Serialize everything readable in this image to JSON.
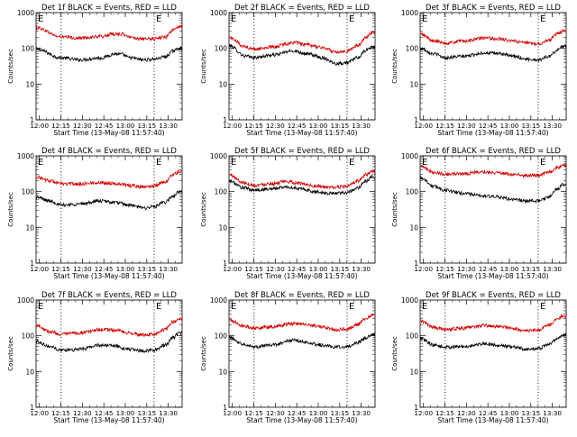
{
  "chart_data": [
    {
      "type": "line",
      "title": "Det 1f BLACK = Events, RED = LLD",
      "xlabel": "Start Time (13-May-08 11:57:40)",
      "ylabel": "Counts/sec",
      "x_ticks": [
        "12:00",
        "12:15",
        "12:30",
        "12:45",
        "13:00",
        "13:15",
        "13:30"
      ],
      "y_ticks": [
        "1",
        "10",
        "100",
        "1000"
      ],
      "x_range_minutes": [
        0,
        102
      ],
      "ylim": [
        1,
        1000
      ],
      "y_scale": "log",
      "vlines_minutes": [
        17.5,
        82.5
      ],
      "markers": [
        {
          "label": "E",
          "x_minutes": 0
        },
        {
          "label": "E",
          "x_minutes": 82.5
        }
      ],
      "x": [
        0,
        17.5,
        30,
        45,
        55,
        60,
        65,
        75,
        82.5,
        90,
        96,
        100
      ],
      "series": [
        {
          "name": "BLACK = Events",
          "color": "#000000",
          "values": [
            95,
            55,
            48,
            54,
            70,
            68,
            55,
            48,
            50,
            58,
            85,
            100
          ]
        },
        {
          "name": "RED = LLD",
          "color": "#d40000",
          "values": [
            380,
            210,
            195,
            215,
            255,
            250,
            210,
            180,
            185,
            210,
            330,
            400
          ]
        }
      ]
    },
    {
      "type": "line",
      "title": "Det 2f BLACK = Events, RED = LLD",
      "xlabel": "Start Time (13-May-08 11:57:40)",
      "ylabel": "Counts/sec",
      "x_ticks": [
        "12:00",
        "12:15",
        "12:30",
        "12:45",
        "13:00",
        "13:15",
        "13:30"
      ],
      "y_ticks": [
        "1",
        "10",
        "100",
        "1000"
      ],
      "x_range_minutes": [
        0,
        102
      ],
      "ylim": [
        1,
        1000
      ],
      "y_scale": "log",
      "vlines_minutes": [
        17.5,
        82.5
      ],
      "markers": [
        {
          "label": "E",
          "x_minutes": 0
        },
        {
          "label": "E",
          "x_minutes": 82.5
        }
      ],
      "x": [
        0,
        12,
        17.5,
        30,
        45,
        55,
        65,
        75,
        82.5,
        90,
        96,
        100
      ],
      "series": [
        {
          "name": "BLACK = Events",
          "color": "#000000",
          "values": [
            120,
            60,
            55,
            65,
            85,
            70,
            55,
            38,
            40,
            55,
            90,
            110
          ]
        },
        {
          "name": "RED = LLD",
          "color": "#d40000",
          "values": [
            200,
            110,
            95,
            110,
            145,
            125,
            105,
            80,
            85,
            120,
            210,
            280
          ]
        }
      ]
    },
    {
      "type": "line",
      "title": "Det 3f BLACK = Events, RED = LLD",
      "xlabel": "Start Time (13-May-08 11:57:40)",
      "ylabel": "Counts/sec",
      "x_ticks": [
        "12:00",
        "12:15",
        "12:30",
        "12:45",
        "13:00",
        "13:15",
        "13:30"
      ],
      "y_ticks": [
        "1",
        "10",
        "100",
        "1000"
      ],
      "x_range_minutes": [
        0,
        102
      ],
      "ylim": [
        1,
        1000
      ],
      "y_scale": "log",
      "vlines_minutes": [
        17.5,
        82.5
      ],
      "markers": [
        {
          "label": "E",
          "x_minutes": 0
        },
        {
          "label": "E",
          "x_minutes": 82.5
        }
      ],
      "x": [
        0,
        10,
        17.5,
        30,
        45,
        55,
        65,
        75,
        82.5,
        90,
        96,
        100
      ],
      "series": [
        {
          "name": "BLACK = Events",
          "color": "#000000",
          "values": [
            100,
            70,
            55,
            60,
            75,
            72,
            60,
            50,
            48,
            60,
            90,
            120
          ]
        },
        {
          "name": "RED = LLD",
          "color": "#d40000",
          "values": [
            250,
            160,
            140,
            160,
            195,
            185,
            160,
            140,
            135,
            170,
            260,
            310
          ]
        }
      ]
    },
    {
      "type": "line",
      "title": "Det 4f BLACK = Events, RED = LLD",
      "xlabel": "Start Time (13-May-08 11:57:40)",
      "ylabel": "Counts/sec",
      "x_ticks": [
        "12:00",
        "12:15",
        "12:30",
        "12:45",
        "13:00",
        "13:15",
        "13:30"
      ],
      "y_ticks": [
        "1",
        "10",
        "100",
        "1000"
      ],
      "x_range_minutes": [
        0,
        102
      ],
      "ylim": [
        1,
        1000
      ],
      "y_scale": "log",
      "vlines_minutes": [
        17.5,
        82.5
      ],
      "markers": [
        {
          "label": "E",
          "x_minutes": 0
        },
        {
          "label": "E",
          "x_minutes": 82.5
        }
      ],
      "x": [
        0,
        10,
        17.5,
        30,
        45,
        55,
        65,
        75,
        82.5,
        90,
        96,
        100
      ],
      "series": [
        {
          "name": "BLACK = Events",
          "color": "#000000",
          "values": [
            70,
            55,
            42,
            45,
            55,
            50,
            42,
            35,
            38,
            50,
            75,
            100
          ]
        },
        {
          "name": "RED = LLD",
          "color": "#d40000",
          "values": [
            260,
            200,
            165,
            165,
            180,
            170,
            150,
            135,
            145,
            190,
            300,
            370
          ]
        }
      ]
    },
    {
      "type": "line",
      "title": "Det 5f BLACK = Events, RED = LLD",
      "xlabel": "Start Time (13-May-08 11:57:40)",
      "ylabel": "Counts/sec",
      "x_ticks": [
        "12:00",
        "12:15",
        "12:30",
        "12:45",
        "13:00",
        "13:15",
        "13:30"
      ],
      "y_ticks": [
        "1",
        "10",
        "100",
        "1000"
      ],
      "x_range_minutes": [
        0,
        102
      ],
      "ylim": [
        1,
        1000
      ],
      "y_scale": "log",
      "vlines_minutes": [
        17.5,
        82.5
      ],
      "markers": [
        {
          "label": "E",
          "x_minutes": 0
        },
        {
          "label": "E",
          "x_minutes": 82.5
        }
      ],
      "x": [
        0,
        10,
        17.5,
        30,
        40,
        50,
        60,
        70,
        82.5,
        90,
        96,
        100
      ],
      "series": [
        {
          "name": "BLACK = Events",
          "color": "#000000",
          "values": [
            200,
            130,
            110,
            120,
            135,
            120,
            100,
            90,
            95,
            130,
            200,
            260
          ]
        },
        {
          "name": "RED = LLD",
          "color": "#d40000",
          "values": [
            300,
            180,
            150,
            170,
            190,
            170,
            145,
            130,
            140,
            200,
            300,
            360
          ]
        }
      ]
    },
    {
      "type": "line",
      "title": "Det 6f BLACK = Events, RED = LLD",
      "xlabel": "Start Time (13-May-08 11:57:40)",
      "ylabel": "Counts/sec",
      "x_ticks": [
        "12:00",
        "12:15",
        "12:30",
        "12:45",
        "13:00",
        "13:15",
        "13:30"
      ],
      "y_ticks": [
        "1",
        "10",
        "100",
        "1000"
      ],
      "x_range_minutes": [
        0,
        102
      ],
      "ylim": [
        1,
        1000
      ],
      "y_scale": "log",
      "vlines_minutes": [
        17.5,
        82.5
      ],
      "markers": [
        {
          "label": "E",
          "x_minutes": 0
        },
        {
          "label": "E",
          "x_minutes": 82.5
        }
      ],
      "x": [
        0,
        10,
        17.5,
        30,
        45,
        55,
        65,
        75,
        82.5,
        90,
        96,
        100
      ],
      "series": [
        {
          "name": "BLACK = Events",
          "color": "#000000",
          "values": [
            250,
            140,
            110,
            90,
            75,
            70,
            60,
            55,
            55,
            70,
            120,
            160
          ]
        },
        {
          "name": "RED = LLD",
          "color": "#d40000",
          "values": [
            500,
            350,
            310,
            320,
            360,
            340,
            300,
            280,
            290,
            350,
            480,
            540
          ]
        }
      ]
    },
    {
      "type": "line",
      "title": "Det 7f BLACK = Events, RED = LLD",
      "xlabel": "Start Time (13-May-08 11:57:40)",
      "ylabel": "Counts/sec",
      "x_ticks": [
        "12:00",
        "12:15",
        "12:30",
        "12:45",
        "13:00",
        "13:15",
        "13:30"
      ],
      "y_ticks": [
        "1",
        "10",
        "100",
        "1000"
      ],
      "x_range_minutes": [
        0,
        102
      ],
      "ylim": [
        1,
        1000
      ],
      "y_scale": "log",
      "vlines_minutes": [
        17.5,
        82.5
      ],
      "markers": [
        {
          "label": "E",
          "x_minutes": 0
        },
        {
          "label": "E",
          "x_minutes": 82.5
        }
      ],
      "x": [
        0,
        10,
        17.5,
        30,
        45,
        55,
        65,
        75,
        82.5,
        90,
        96,
        100
      ],
      "series": [
        {
          "name": "BLACK = Events",
          "color": "#000000",
          "values": [
            70,
            50,
            40,
            42,
            55,
            52,
            42,
            38,
            40,
            55,
            90,
            120
          ]
        },
        {
          "name": "RED = LLD",
          "color": "#d40000",
          "values": [
            200,
            130,
            110,
            120,
            150,
            145,
            120,
            105,
            110,
            150,
            250,
            300
          ]
        }
      ]
    },
    {
      "type": "line",
      "title": "Det 8f BLACK = Events, RED = LLD",
      "xlabel": "Start Time (13-May-08 11:57:40)",
      "ylabel": "Counts/sec",
      "x_ticks": [
        "12:00",
        "12:15",
        "12:30",
        "12:45",
        "13:00",
        "13:15",
        "13:30"
      ],
      "y_ticks": [
        "1",
        "10",
        "100",
        "1000"
      ],
      "x_range_minutes": [
        0,
        102
      ],
      "ylim": [
        1,
        1000
      ],
      "y_scale": "log",
      "vlines_minutes": [
        17.5,
        82.5
      ],
      "markers": [
        {
          "label": "E",
          "x_minutes": 0
        },
        {
          "label": "E",
          "x_minutes": 82.5
        }
      ],
      "x": [
        0,
        10,
        17.5,
        30,
        45,
        55,
        65,
        75,
        82.5,
        90,
        96,
        100
      ],
      "series": [
        {
          "name": "BLACK = Events",
          "color": "#000000",
          "values": [
            90,
            60,
            50,
            55,
            75,
            65,
            55,
            48,
            50,
            65,
            90,
            110
          ]
        },
        {
          "name": "RED = LLD",
          "color": "#d40000",
          "values": [
            280,
            190,
            165,
            180,
            220,
            205,
            175,
            150,
            155,
            210,
            320,
            380
          ]
        }
      ]
    },
    {
      "type": "line",
      "title": "Det 9f BLACK = Events, RED = LLD",
      "xlabel": "Start Time (13-May-08 11:57:40)",
      "ylabel": "Counts/sec",
      "x_ticks": [
        "12:00",
        "12:15",
        "12:30",
        "12:45",
        "13:00",
        "13:15",
        "13:30"
      ],
      "y_ticks": [
        "1",
        "10",
        "100",
        "1000"
      ],
      "x_range_minutes": [
        0,
        102
      ],
      "ylim": [
        1,
        1000
      ],
      "y_scale": "log",
      "vlines_minutes": [
        17.5,
        82.5
      ],
      "markers": [
        {
          "label": "E",
          "x_minutes": 0
        },
        {
          "label": "E",
          "x_minutes": 82.5
        }
      ],
      "x": [
        0,
        10,
        17.5,
        30,
        45,
        55,
        65,
        75,
        82.5,
        90,
        96,
        100
      ],
      "series": [
        {
          "name": "BLACK = Events",
          "color": "#000000",
          "values": [
            85,
            55,
            48,
            50,
            60,
            55,
            48,
            42,
            44,
            58,
            85,
            105
          ]
        },
        {
          "name": "RED = LLD",
          "color": "#d40000",
          "values": [
            260,
            170,
            150,
            165,
            195,
            180,
            160,
            140,
            145,
            200,
            300,
            360
          ]
        }
      ]
    }
  ]
}
